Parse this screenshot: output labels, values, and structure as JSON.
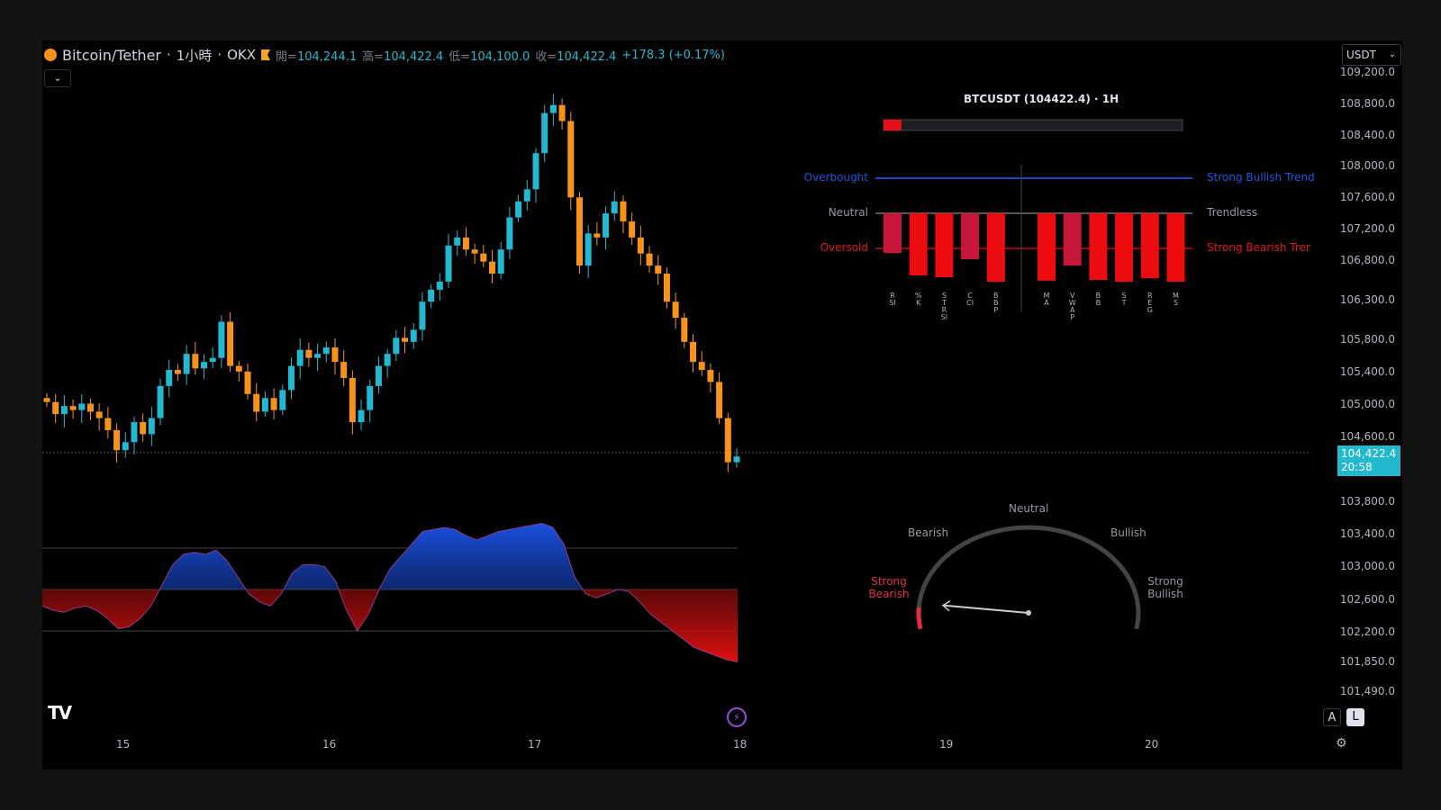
{
  "header": {
    "symbol": "Bitcoin/Tether",
    "interval": "1小時",
    "exchange": "OKX",
    "open_label": "開",
    "open": "104,244.1",
    "high_label": "高",
    "high": "104,422.4",
    "low_label": "低",
    "low": "104,100.0",
    "close_label": "收",
    "close": "104,422.4",
    "change": "+178.3 (+0.17%)"
  },
  "currency": "USDT",
  "price_axis": [
    "109,200.0",
    "108,800.0",
    "108,400.0",
    "108,000.0",
    "107,600.0",
    "107,200.0",
    "106,800.0",
    "106,300.0",
    "105,800.0",
    "105,400.0",
    "105,000.0",
    "104,600.0",
    "103,800.0",
    "103,400.0",
    "103,000.0",
    "102,600.0",
    "102,200.0",
    "101,850.0",
    "101,490.0"
  ],
  "last_price": {
    "value": "104,422.4",
    "countdown": "20:58"
  },
  "date_axis": [
    "15",
    "16",
    "17",
    "18",
    "19",
    "20"
  ],
  "colors": {
    "up": "#22b8cf",
    "down": "#f7931a",
    "bear": "#e5101a",
    "bull": "#1848c8"
  },
  "candles_close": [
    105100,
    104950,
    105050,
    105000,
    105080,
    104980,
    104900,
    104750,
    104500,
    104600,
    104850,
    104700,
    104900,
    105300,
    105500,
    105450,
    105700,
    105520,
    105600,
    105650,
    106100,
    105550,
    105480,
    105200,
    104980,
    105150,
    105000,
    105250,
    105550,
    105750,
    105650,
    105700,
    105780,
    105600,
    105400,
    104850,
    105000,
    105300,
    105550,
    105700,
    105900,
    105850,
    106000,
    106350,
    106500,
    106600,
    107050,
    107150,
    107000,
    106950,
    106850,
    106700,
    107000,
    107400,
    107600,
    107750,
    108200,
    108700,
    108800,
    108600,
    107650,
    106800,
    107200,
    107150,
    107450,
    107600,
    107350,
    107150,
    106950,
    106800,
    106700,
    106350,
    106150,
    105850,
    105600,
    105500,
    105350,
    104900,
    104350,
    104422
  ],
  "oscillator": [
    -0.4,
    -0.5,
    -0.55,
    -0.45,
    -0.4,
    -0.5,
    -0.7,
    -0.95,
    -0.9,
    -0.7,
    -0.4,
    0.1,
    0.6,
    0.85,
    0.9,
    0.85,
    0.95,
    0.7,
    0.3,
    -0.1,
    -0.3,
    -0.4,
    -0.1,
    0.4,
    0.6,
    0.6,
    0.55,
    0.2,
    -0.5,
    -1.0,
    -0.6,
    0.0,
    0.5,
    0.8,
    1.1,
    1.4,
    1.45,
    1.5,
    1.45,
    1.3,
    1.2,
    1.3,
    1.4,
    1.45,
    1.5,
    1.55,
    1.6,
    1.5,
    1.1,
    0.3,
    -0.1,
    -0.2,
    -0.1,
    0.0,
    -0.05,
    -0.3,
    -0.6,
    -0.8,
    -1.0,
    -1.2,
    -1.4,
    -1.5,
    -1.6,
    -1.7,
    -1.75
  ],
  "panel": {
    "title": "BTCUSDT (104422.4) · 1H",
    "progress": 0.06,
    "left_labels": {
      "overbought": "Overbought",
      "neutral": "Neutral",
      "oversold": "Oversold"
    },
    "right_labels": {
      "bull": "Strong Bullish Trend",
      "neutral": "Trendless",
      "bear": "Strong Bearish Trend"
    },
    "oscillators": [
      {
        "name": "RSI",
        "value": -1.13
      },
      {
        "name": "%K",
        "value": -1.77
      },
      {
        "name": "STRSI",
        "value": -1.82
      },
      {
        "name": "CCI",
        "value": -1.31
      },
      {
        "name": "BBP",
        "value": -1.95
      }
    ],
    "trend": [
      {
        "name": "MA",
        "value": -1.92
      },
      {
        "name": "VWAP",
        "value": -1.49
      },
      {
        "name": "BB",
        "value": -1.9
      },
      {
        "name": "ST",
        "value": -1.95
      },
      {
        "name": "REG",
        "value": -1.85
      },
      {
        "name": "MS",
        "value": -1.95
      }
    ]
  },
  "gauge": {
    "value": -0.88,
    "labels": {
      "neutral": "Neutral",
      "bearish": "Bearish",
      "bullish": "Bullish",
      "strong_bearish": "Strong Bearish",
      "strong_bullish": "Strong Bullish"
    }
  },
  "buttons": {
    "auto": "A",
    "log": "L"
  }
}
